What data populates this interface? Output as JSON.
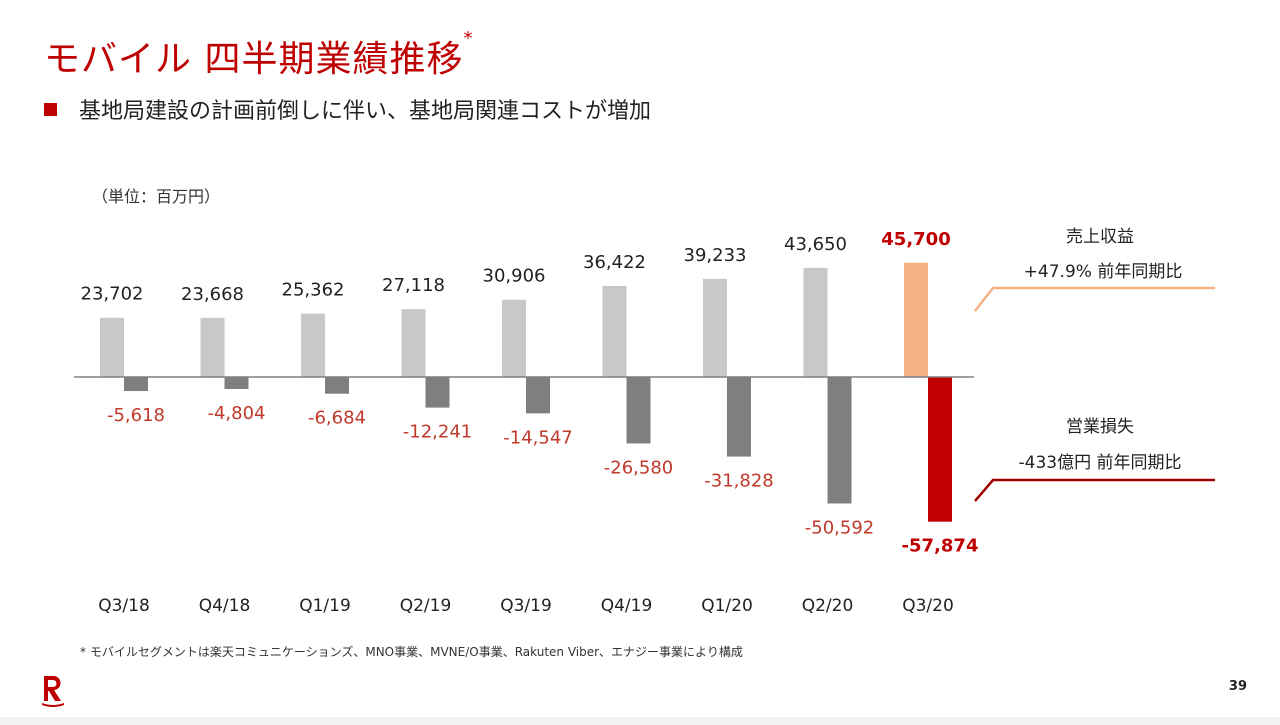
{
  "page": {
    "title": "モバイル 四半期業績推移",
    "title_mark": "*",
    "bullet_text": "基地局建設の計画前倒しに伴い、基地局関連コストが増加",
    "footnote": "* モバイルセグメントは楽天コミュニケーションズ、MNO事業、MVNE/O事業、Rakuten Viber、エナジー事業により構成",
    "page_number": "39",
    "logo_name": "rakuten-r-logo"
  },
  "colors": {
    "brand_red": "#bf0000",
    "revenue_bar": "#c8c8c8",
    "revenue_highlight": "#f4b183",
    "loss_bar": "#7f7f7f",
    "loss_highlight": "#c00000",
    "loss_label": "#c0392b"
  },
  "chart_data": {
    "type": "bar",
    "unit_label": "（単位：百万円）",
    "categories": [
      "Q3/18",
      "Q4/18",
      "Q1/19",
      "Q2/19",
      "Q3/19",
      "Q4/19",
      "Q1/20",
      "Q2/20",
      "Q3/20"
    ],
    "series": [
      {
        "name": "売上収益",
        "values": [
          23702,
          23668,
          25362,
          27118,
          30906,
          36422,
          39233,
          43650,
          45700
        ],
        "labels": [
          "23,702",
          "23,668",
          "25,362",
          "27,118",
          "30,906",
          "36,422",
          "39,233",
          "43,650",
          "45,700"
        ]
      },
      {
        "name": "営業損失",
        "values": [
          -5618,
          -4804,
          -6684,
          -12241,
          -14547,
          -26580,
          -31828,
          -50592,
          -57874
        ],
        "labels": [
          "-5,618",
          "-4,804",
          "-6,684",
          "-12,241",
          "-14,547",
          "-26,580",
          "-31,828",
          "-50,592",
          "-57,874"
        ]
      }
    ],
    "highlight_index": 8,
    "annotations": {
      "revenue": {
        "title": "売上収益",
        "change": "+47.9% 前年同期比"
      },
      "loss": {
        "title": "営業損失",
        "change": "-433億円 前年同期比"
      }
    }
  }
}
